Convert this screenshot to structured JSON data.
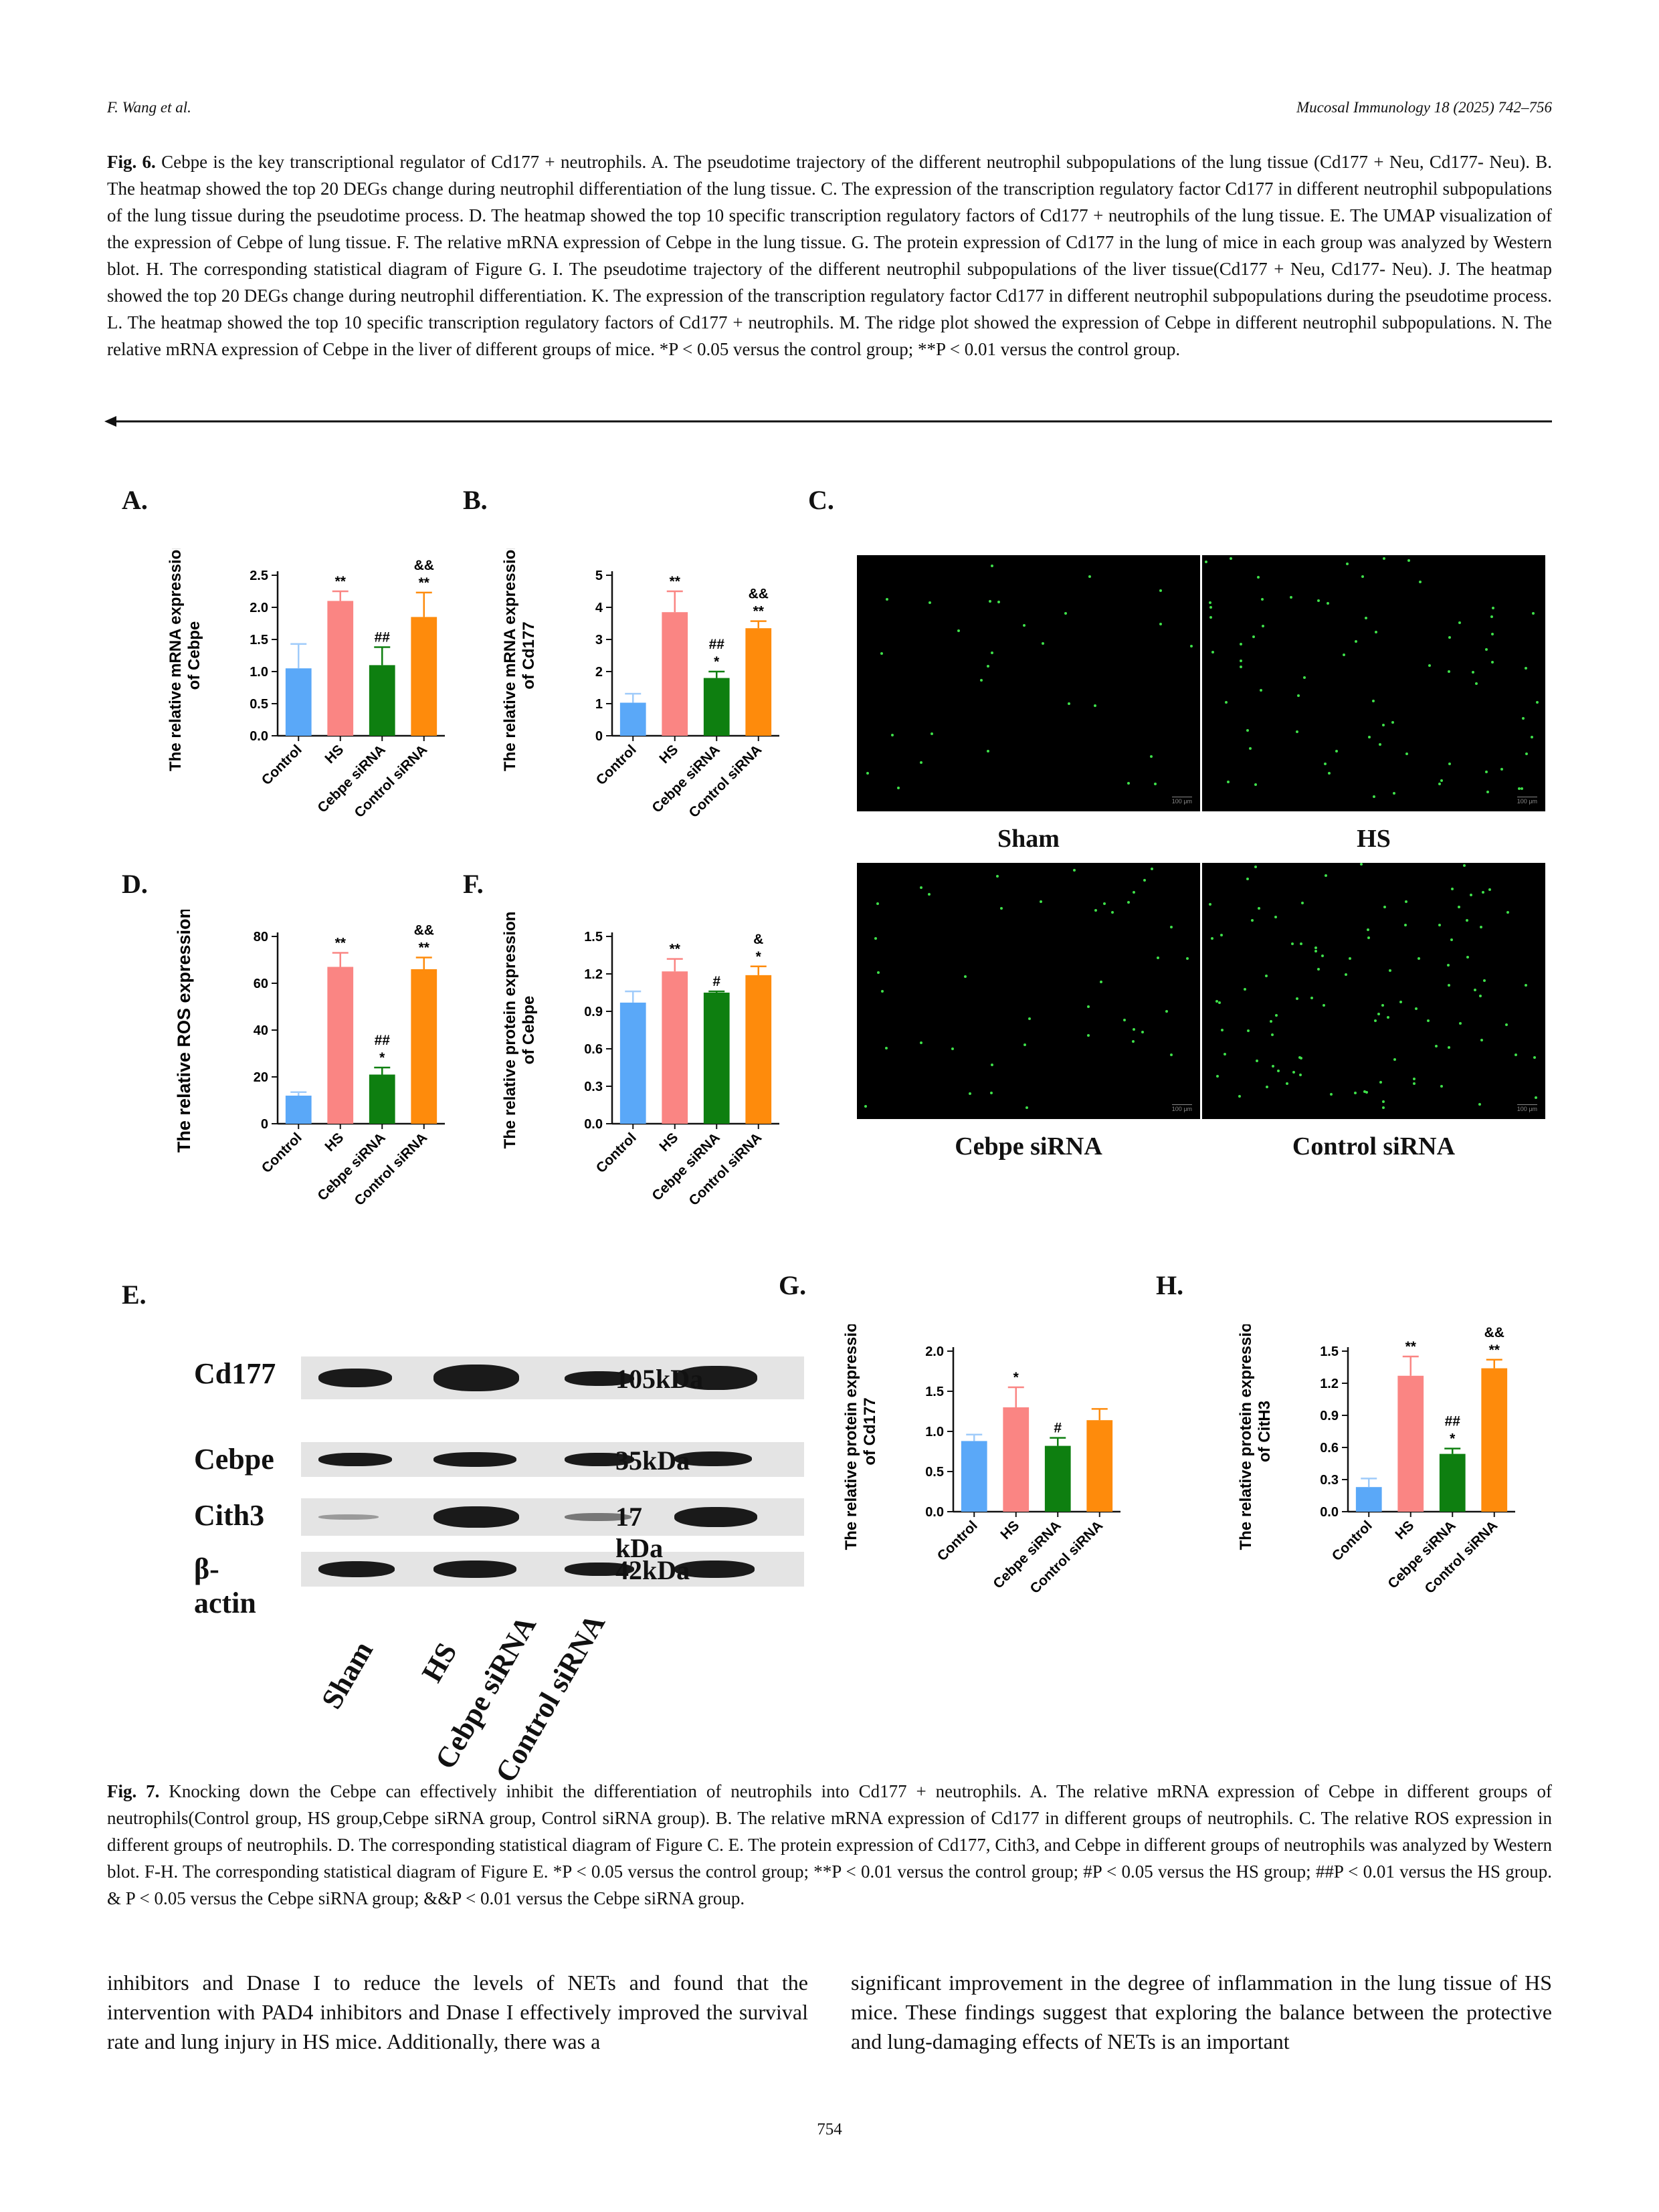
{
  "header": {
    "left": "F. Wang et al.",
    "right": "Mucosal Immunology 18 (2025) 742–756"
  },
  "fig6_caption": {
    "label": "Fig. 6.",
    "text": "Cebpe is the key transcriptional regulator of Cd177 + neutrophils. A. The pseudotime trajectory of the different neutrophil subpopulations of the lung tissue (Cd177 + Neu, Cd177- Neu). B. The heatmap showed the top 20 DEGs change during neutrophil differentiation of the lung tissue. C. The expression of the transcription regulatory factor Cd177 in different neutrophil subpopulations of the lung tissue during the pseudotime process. D. The heatmap showed the top 10 specific transcription regulatory factors of Cd177 + neutrophils of the lung tissue. E. The UMAP visualization of the expression of Cebpe of lung tissue. F. The relative mRNA expression of Cebpe in the lung tissue. G. The protein expression of Cd177 in the lung of mice in each group was analyzed by Western blot. H. The corresponding statistical diagram of Figure G. I. The pseudotime trajectory of the different neutrophil subpopulations of the liver tissue(Cd177 + Neu, Cd177- Neu). J. The heatmap showed the top 20 DEGs change during neutrophil differentiation. K. The expression of the transcription regulatory factor Cd177 in different neutrophil subpopulations during the pseudotime process. L. The heatmap showed the top 10 specific transcription regulatory factors of Cd177 + neutrophils. M. The ridge plot showed the expression of Cebpe in different neutrophil subpopulations. N. The relative mRNA expression of Cebpe in the liver of different groups of mice. *P < 0.05 versus the control group; **P < 0.01 versus the control group."
  },
  "panel_letters": {
    "A": "A.",
    "B": "B.",
    "C": "C.",
    "D": "D.",
    "E": "E.",
    "F": "F.",
    "G": "G.",
    "H": "H."
  },
  "colors": {
    "control": "#5aa8f8",
    "hs": "#fa8583",
    "cebpe_sirna": "#0e7f10",
    "control_sirna": "#fe8b0c"
  },
  "chart_data": [
    {
      "id": "A",
      "type": "bar",
      "ylabel": "The relative  mRNA expression of Cebpe",
      "categories": [
        "Control",
        "HS",
        "Cebpe siRNA",
        "Control siRNA"
      ],
      "values": [
        1.05,
        2.1,
        1.1,
        1.85
      ],
      "errors": [
        0.38,
        0.15,
        0.28,
        0.38
      ],
      "annotations": [
        "",
        "**",
        "##",
        "&&\n**"
      ],
      "ylim": [
        0,
        2.5
      ],
      "yticks": [
        "0.0",
        "0.5",
        "1.0",
        "1.5",
        "2.0",
        "2.5"
      ]
    },
    {
      "id": "B",
      "type": "bar",
      "ylabel": "The relative  mRNA expression of Cd177",
      "categories": [
        "Control",
        "HS",
        "Cebpe siRNA",
        "Control siRNA"
      ],
      "values": [
        1.03,
        3.85,
        1.8,
        3.35
      ],
      "errors": [
        0.28,
        0.65,
        0.2,
        0.22
      ],
      "annotations": [
        "",
        "**",
        "##\n*",
        "&&\n**"
      ],
      "ylim": [
        0,
        5
      ],
      "yticks": [
        "0",
        "1",
        "2",
        "3",
        "4",
        "5"
      ]
    },
    {
      "id": "D",
      "type": "bar",
      "ylabel": "The relative ROS expression",
      "categories": [
        "Control",
        "HS",
        "Cebpe siRNA",
        "Control siRNA"
      ],
      "values": [
        12,
        67,
        21,
        66
      ],
      "errors": [
        1.5,
        6,
        3,
        5
      ],
      "annotations": [
        "",
        "**",
        "##\n*",
        "&&\n**"
      ],
      "ylim": [
        0,
        80
      ],
      "yticks": [
        "0",
        "20",
        "40",
        "60",
        "80"
      ]
    },
    {
      "id": "F",
      "type": "bar",
      "ylabel": "The relative protein expression of Cebpe",
      "categories": [
        "Control",
        "HS",
        "Cebpe siRNA",
        "Control siRNA"
      ],
      "values": [
        0.97,
        1.22,
        1.05,
        1.19
      ],
      "errors": [
        0.09,
        0.1,
        0.01,
        0.07
      ],
      "annotations": [
        "",
        "**",
        "#",
        "&\n*"
      ],
      "ylim": [
        0,
        1.5
      ],
      "yticks": [
        "0.0",
        "0.3",
        "0.6",
        "0.9",
        "1.2",
        "1.5"
      ]
    },
    {
      "id": "G",
      "type": "bar",
      "ylabel": "The relative protein expression of Cd177",
      "categories": [
        "Control",
        "HS",
        "Cebpe siRNA",
        "Control siRNA"
      ],
      "values": [
        0.88,
        1.3,
        0.82,
        1.14
      ],
      "errors": [
        0.08,
        0.25,
        0.1,
        0.14
      ],
      "annotations": [
        "",
        "*",
        "#",
        ""
      ],
      "ylim": [
        0,
        2.0
      ],
      "yticks": [
        "0.0",
        "0.5",
        "1.0",
        "1.5",
        "2.0"
      ]
    },
    {
      "id": "H",
      "type": "bar",
      "ylabel": "The relative protein expression of CitH3",
      "categories": [
        "Control",
        "HS",
        "Cebpe siRNA",
        "Control siRNA"
      ],
      "values": [
        0.23,
        1.27,
        0.54,
        1.34
      ],
      "errors": [
        0.08,
        0.18,
        0.05,
        0.08
      ],
      "annotations": [
        "",
        "**",
        "##\n*",
        "&&\n**"
      ],
      "ylim": [
        0,
        1.5
      ],
      "yticks": [
        "0.0",
        "0.3",
        "0.6",
        "0.9",
        "1.2",
        "1.5"
      ]
    }
  ],
  "micrographs": {
    "labels": [
      "Sham",
      "HS",
      "Cebpe siRNA",
      "Control siRNA"
    ],
    "scale_bar": "100 μm"
  },
  "western_blot": {
    "rows": [
      {
        "label": "Cd177",
        "kda": "105kDa"
      },
      {
        "label": "Cebpe",
        "kda": "35kDa"
      },
      {
        "label": "Cith3",
        "kda": "17 kDa"
      },
      {
        "label": "β-actin",
        "kda": "42kDa"
      }
    ],
    "lanes": [
      "Sham",
      "HS",
      "Cebpe siRNA",
      "Control siRNA"
    ]
  },
  "fig7_caption": {
    "label": "Fig. 7.",
    "text": "Knocking down the Cebpe can effectively inhibit the differentiation of neutrophils into Cd177 + neutrophils. A. The relative mRNA expression of Cebpe in different groups of neutrophils(Control group, HS group,Cebpe siRNA group, Control siRNA group). B. The relative mRNA expression of Cd177 in different groups of neutrophils. C. The relative ROS expression in different groups of neutrophils. D. The corresponding statistical diagram of Figure C. E. The protein expression of Cd177, Cith3, and Cebpe in different groups of neutrophils was analyzed by Western blot. F-H. The corresponding statistical diagram of Figure E. *P < 0.05 versus the control group; **P < 0.01 versus the control group; #P < 0.05 versus the HS group; ##P < 0.01 versus the HS group. & P < 0.05 versus the Cebpe siRNA group; &&P < 0.01 versus the Cebpe siRNA group."
  },
  "body_text": {
    "left": "inhibitors and Dnase I to reduce the levels of NETs and found that the intervention with PAD4 inhibitors and Dnase I effectively improved the survival rate and lung injury in HS mice. Additionally, there was a",
    "right": "significant improvement in the degree of inflammation in the lung tissue of HS mice. These findings suggest that exploring the balance between the protective and lung-damaging effects of NETs is an important"
  },
  "page_number": "754"
}
